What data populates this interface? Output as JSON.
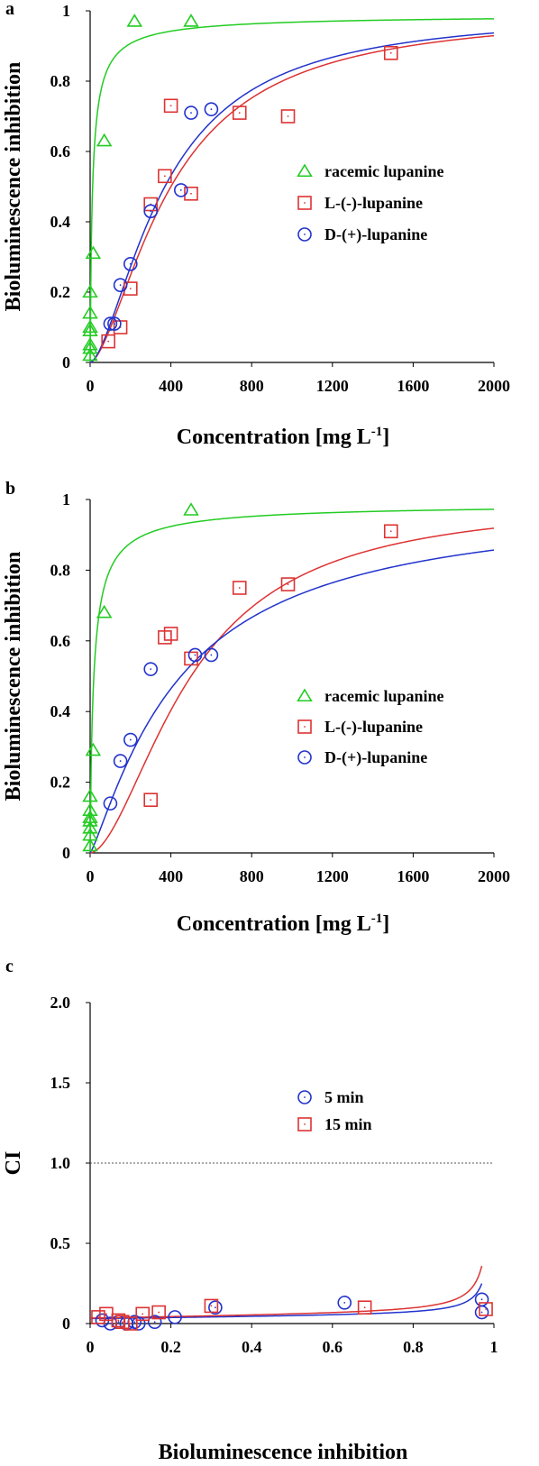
{
  "chart_data": [
    {
      "panel": "a",
      "type": "scatter",
      "xlabel": "Concentration [mg L",
      "xlabel_sup": "-1",
      "xlabel_end": "]",
      "ylabel": "Bioluminescence inhibition",
      "xlim": [
        0,
        2000
      ],
      "ylim": [
        0,
        1
      ],
      "xticks": [
        "0",
        "400",
        "800",
        "1200",
        "1600",
        "2000"
      ],
      "yticks": [
        "0",
        "0.2",
        "0.4",
        "0.6",
        "0.8",
        "1"
      ],
      "legend_position": "right",
      "series": [
        {
          "name": "racemic lupanine",
          "marker": "triangle",
          "color": "#22cc22",
          "points": [
            [
              0,
              0.02
            ],
            [
              0,
              0.04
            ],
            [
              0,
              0.05
            ],
            [
              0,
              0.09
            ],
            [
              0,
              0.1
            ],
            [
              0,
              0.14
            ],
            [
              0,
              0.2
            ],
            [
              15,
              0.31
            ],
            [
              70,
              0.63
            ],
            [
              220,
              0.97
            ],
            [
              500,
              0.97
            ]
          ],
          "fit": {
            "ec50": 12,
            "hill": 0.85,
            "top": 0.99
          }
        },
        {
          "name": "L-(-)-lupanine",
          "marker": "square",
          "color": "#dd3333",
          "points": [
            [
              90,
              0.06
            ],
            [
              150,
              0.1
            ],
            [
              200,
              0.21
            ],
            [
              300,
              0.45
            ],
            [
              370,
              0.53
            ],
            [
              400,
              0.73
            ],
            [
              500,
              0.48
            ],
            [
              740,
              0.71
            ],
            [
              980,
              0.7
            ],
            [
              1490,
              0.88
            ]
          ],
          "fit": {
            "ec50": 400,
            "hill": 1.6,
            "top": 1.0
          }
        },
        {
          "name": "D-(+)-lupanine",
          "marker": "circle",
          "color": "#2233cc",
          "points": [
            [
              100,
              0.11
            ],
            [
              120,
              0.11
            ],
            [
              150,
              0.22
            ],
            [
              200,
              0.28
            ],
            [
              300,
              0.43
            ],
            [
              450,
              0.49
            ],
            [
              500,
              0.71
            ],
            [
              600,
              0.72
            ]
          ],
          "fit": {
            "ec50": 370,
            "hill": 1.6,
            "top": 1.0
          }
        }
      ]
    },
    {
      "panel": "b",
      "type": "scatter",
      "xlabel": "Concentration [mg L",
      "xlabel_sup": "-1",
      "xlabel_end": "]",
      "ylabel": "Bioluminescence inhibition",
      "xlim": [
        0,
        2000
      ],
      "ylim": [
        0,
        1
      ],
      "xticks": [
        "0",
        "400",
        "800",
        "1200",
        "1600",
        "2000"
      ],
      "yticks": [
        "0",
        "0.2",
        "0.4",
        "0.6",
        "0.8",
        "1"
      ],
      "legend_position": "right",
      "series": [
        {
          "name": "racemic lupanine",
          "marker": "triangle",
          "color": "#22cc22",
          "points": [
            [
              0,
              0.02
            ],
            [
              0,
              0.05
            ],
            [
              0,
              0.07
            ],
            [
              0,
              0.09
            ],
            [
              0,
              0.1
            ],
            [
              0,
              0.12
            ],
            [
              0,
              0.16
            ],
            [
              15,
              0.29
            ],
            [
              70,
              0.68
            ],
            [
              500,
              0.97
            ]
          ],
          "fit": {
            "ec50": 18,
            "hill": 0.85,
            "top": 0.99
          }
        },
        {
          "name": "L-(-)-lupanine",
          "marker": "square",
          "color": "#dd3333",
          "points": [
            [
              300,
              0.15
            ],
            [
              370,
              0.61
            ],
            [
              400,
              0.62
            ],
            [
              500,
              0.55
            ],
            [
              740,
              0.75
            ],
            [
              980,
              0.76
            ],
            [
              1490,
              0.91
            ]
          ],
          "fit": {
            "ec50": 500,
            "hill": 1.75,
            "top": 1.0
          }
        },
        {
          "name": "D-(+)-lupanine",
          "marker": "circle",
          "color": "#2233cc",
          "points": [
            [
              100,
              0.14
            ],
            [
              150,
              0.26
            ],
            [
              200,
              0.32
            ],
            [
              300,
              0.52
            ],
            [
              520,
              0.56
            ],
            [
              600,
              0.56
            ]
          ],
          "fit": {
            "ec50": 450,
            "hill": 1.2,
            "top": 1.0
          }
        }
      ]
    },
    {
      "panel": "c",
      "type": "scatter",
      "xlabel": "Bioluminescence inhibition",
      "ylabel": "CI",
      "xlim": [
        0,
        1
      ],
      "ylim": [
        0,
        2
      ],
      "xticks": [
        "0",
        "0.2",
        "0.4",
        "0.6",
        "0.8",
        "1"
      ],
      "yticks": [
        "0",
        "0.5",
        "1.0",
        "1.5",
        "2.0"
      ],
      "reference_line": 1.0,
      "legend_position": "center-right",
      "series": [
        {
          "name": "5 min",
          "marker": "circle",
          "color": "#2233cc",
          "points": [
            [
              0.03,
              0.02
            ],
            [
              0.05,
              0.0
            ],
            [
              0.07,
              0.01
            ],
            [
              0.09,
              0.0
            ],
            [
              0.11,
              0.01
            ],
            [
              0.12,
              0.0
            ],
            [
              0.16,
              0.01
            ],
            [
              0.21,
              0.04
            ],
            [
              0.31,
              0.1
            ],
            [
              0.63,
              0.13
            ],
            [
              0.97,
              0.07
            ],
            [
              0.97,
              0.15
            ]
          ],
          "fit": {
            "a": 0.025,
            "b": 0.025,
            "c": 0.006
          }
        },
        {
          "name": "15 min",
          "marker": "square",
          "color": "#dd3333",
          "points": [
            [
              0.02,
              0.04
            ],
            [
              0.04,
              0.06
            ],
            [
              0.07,
              0.02
            ],
            [
              0.08,
              0.01
            ],
            [
              0.1,
              0.0
            ],
            [
              0.13,
              0.06
            ],
            [
              0.17,
              0.07
            ],
            [
              0.3,
              0.11
            ],
            [
              0.68,
              0.1
            ],
            [
              0.98,
              0.09
            ]
          ],
          "fit": {
            "a": 0.025,
            "b": 0.035,
            "c": 0.009
          }
        }
      ]
    }
  ]
}
